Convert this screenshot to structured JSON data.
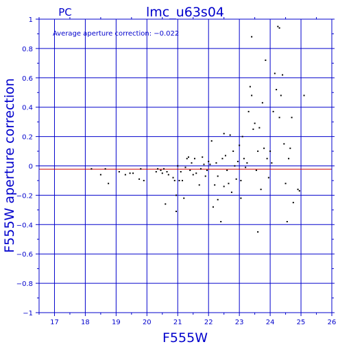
{
  "chart_data": {
    "type": "scatter",
    "title": "lmc_u63s04",
    "corner_label": "PC",
    "annotation": "Average aperture correction: −0.022",
    "xlabel": "F555W",
    "ylabel": "F555W aperture correction",
    "xlim": [
      16.5,
      26
    ],
    "ylim": [
      -1,
      1
    ],
    "x_ticks": [
      17,
      18,
      19,
      20,
      21,
      22,
      23,
      24,
      25,
      26
    ],
    "x_tick_labels": [
      "17",
      "18",
      "19",
      "20",
      "21",
      "22",
      "23",
      "24",
      "25",
      "26"
    ],
    "y_ticks": [
      -1,
      -0.8,
      -0.6,
      -0.4,
      -0.2,
      0,
      0.2,
      0.4,
      0.6,
      0.8,
      1
    ],
    "y_tick_labels": [
      "−1",
      "−0.8",
      "−0.6",
      "−0.4",
      "−0.2",
      "0",
      "0.2",
      "0.4",
      "0.6",
      "0.8",
      "1"
    ],
    "grid": true,
    "reference_lines": [
      {
        "y": 0,
        "color": "#0000cc"
      },
      {
        "y": -0.022,
        "color": "#cc0000"
      }
    ],
    "colors": {
      "axis": "#0000cc",
      "grid": "#0000cc",
      "points": "#000000",
      "average_line": "#cc0000"
    },
    "points": [
      [
        18.2,
        -0.02
      ],
      [
        18.5,
        -0.06
      ],
      [
        18.65,
        -0.02
      ],
      [
        18.75,
        -0.12
      ],
      [
        19.1,
        -0.04
      ],
      [
        19.3,
        -0.06
      ],
      [
        19.45,
        -0.05
      ],
      [
        19.55,
        -0.05
      ],
      [
        19.75,
        -0.09
      ],
      [
        19.8,
        -0.02
      ],
      [
        19.9,
        -0.1
      ],
      [
        20.3,
        -0.04
      ],
      [
        20.35,
        -0.02
      ],
      [
        20.45,
        -0.03
      ],
      [
        20.5,
        -0.05
      ],
      [
        20.55,
        -0.02
      ],
      [
        20.6,
        -0.26
      ],
      [
        20.65,
        -0.04
      ],
      [
        20.7,
        -0.06
      ],
      [
        20.85,
        -0.08
      ],
      [
        20.9,
        -0.1
      ],
      [
        20.95,
        -0.2
      ],
      [
        20.95,
        -0.31
      ],
      [
        21.0,
        0.0
      ],
      [
        21.05,
        -0.1
      ],
      [
        21.1,
        -0.04
      ],
      [
        21.15,
        -0.1
      ],
      [
        21.2,
        -0.22
      ],
      [
        21.25,
        -0.01
      ],
      [
        21.3,
        0.05
      ],
      [
        21.35,
        0.06
      ],
      [
        21.4,
        -0.03
      ],
      [
        21.45,
        0.02
      ],
      [
        21.5,
        -0.06
      ],
      [
        21.55,
        0.05
      ],
      [
        21.6,
        -0.05
      ],
      [
        21.7,
        -0.13
      ],
      [
        21.75,
        -0.02
      ],
      [
        21.8,
        0.06
      ],
      [
        21.85,
        0.01
      ],
      [
        21.9,
        -0.07
      ],
      [
        21.95,
        -0.03
      ],
      [
        22.0,
        0.03
      ],
      [
        22.05,
        0.01
      ],
      [
        22.1,
        0.17
      ],
      [
        22.15,
        -0.28
      ],
      [
        22.2,
        -0.13
      ],
      [
        22.25,
        0.02
      ],
      [
        22.3,
        -0.07
      ],
      [
        22.3,
        -0.23
      ],
      [
        22.4,
        -0.38
      ],
      [
        22.45,
        0.05
      ],
      [
        22.5,
        0.22
      ],
      [
        22.5,
        -0.14
      ],
      [
        22.55,
        0.07
      ],
      [
        22.6,
        -0.03
      ],
      [
        22.65,
        -0.12
      ],
      [
        22.7,
        0.21
      ],
      [
        22.75,
        -0.18
      ],
      [
        22.8,
        0.1
      ],
      [
        22.85,
        0.0
      ],
      [
        22.9,
        -0.09
      ],
      [
        22.95,
        0.03
      ],
      [
        23.0,
        0.14
      ],
      [
        23.05,
        -0.1
      ],
      [
        23.05,
        -0.22
      ],
      [
        23.1,
        0.2
      ],
      [
        23.15,
        0.05
      ],
      [
        23.2,
        -0.01
      ],
      [
        23.25,
        0.02
      ],
      [
        23.3,
        0.37
      ],
      [
        23.35,
        0.54
      ],
      [
        23.4,
        0.88
      ],
      [
        23.4,
        0.48
      ],
      [
        23.45,
        0.25
      ],
      [
        23.5,
        0.29
      ],
      [
        23.55,
        -0.03
      ],
      [
        23.6,
        0.1
      ],
      [
        23.6,
        -0.45
      ],
      [
        23.65,
        0.26
      ],
      [
        23.7,
        -0.16
      ],
      [
        23.75,
        0.43
      ],
      [
        23.8,
        0.12
      ],
      [
        23.85,
        0.72
      ],
      [
        23.9,
        0.05
      ],
      [
        23.95,
        -0.08
      ],
      [
        24.0,
        0.1
      ],
      [
        24.05,
        0.02
      ],
      [
        24.1,
        0.37
      ],
      [
        24.15,
        0.63
      ],
      [
        24.2,
        0.52
      ],
      [
        24.25,
        0.95
      ],
      [
        24.3,
        0.94
      ],
      [
        24.3,
        0.33
      ],
      [
        24.35,
        0.48
      ],
      [
        24.4,
        0.62
      ],
      [
        24.45,
        0.15
      ],
      [
        24.5,
        -0.12
      ],
      [
        24.55,
        -0.38
      ],
      [
        24.6,
        0.05
      ],
      [
        24.65,
        0.12
      ],
      [
        24.7,
        0.33
      ],
      [
        24.75,
        -0.25
      ],
      [
        24.9,
        -0.16
      ],
      [
        24.95,
        -0.17
      ],
      [
        25.1,
        0.48
      ]
    ]
  }
}
